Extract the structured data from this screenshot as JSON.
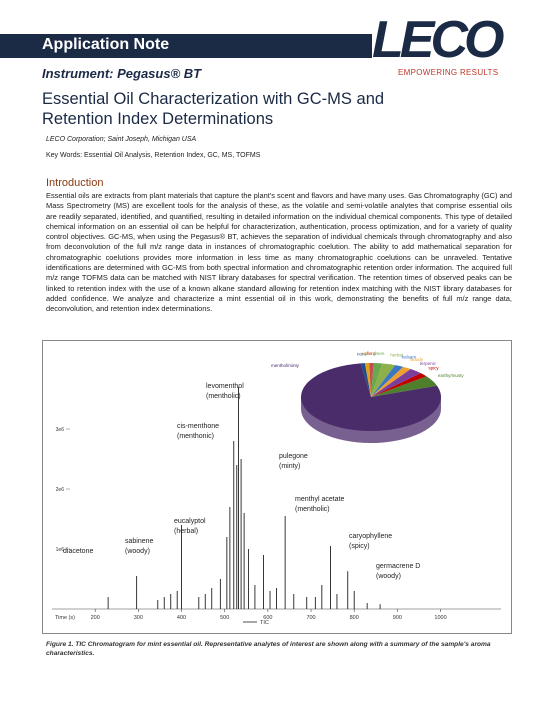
{
  "header": {
    "title": "Application Note",
    "logo": "LECO",
    "tagline": "EMPOWERING RESULTS"
  },
  "instrument": "Instrument: Pegasus® BT",
  "title": "Essential Oil Characterization with GC-MS and Retention Index Determinations",
  "affiliation": "LECO Corporation; Saint Joseph, Michigan USA",
  "keywords": "Key Words: Essential Oil Analysis, Retention Index, GC, MS, TOFMS",
  "introduction": {
    "heading": "Introduction",
    "text": "Essential oils are extracts from plant materials that capture the plant's scent and flavors and have many uses. Gas Chromatography (GC) and Mass Spectrometry (MS) are excellent tools for the analysis of these, as the volatile and semi-volatile analytes that comprise essential oils are readily separated, identified, and quantified, resulting in detailed information on the individual chemical components. This type of detailed chemical information on an essential oil can be helpful for characterization, authentication, process optimization, and for a variety of quality control objectives. GC-MS, when using the Pegasus® BT, achieves the separation of individual chemicals through chromatography and also from deconvolution of the full m/z range data in instances of chromatographic coelution. The ability to add mathematical separation for chromatographic coelutions provides more information in less time as many chromatographic coelutions can be unraveled. Tentative identifications are determined with GC-MS from both spectral information and chromatographic retention order information. The acquired full m/z range TOFMS data can be matched with NIST library databases for spectral verification. The retention times of observed peaks can be linked to retention index with the use of a known alkane standard allowing for retention index matching with the NIST library databases for added confidence. We analyze and characterize a mint essential oil in this work, demonstrating the benefits of full m/z range data, deconvolution, and retention index determinations."
  },
  "caption": "Figure 1. TIC Chromatogram for mint essential oil. Representative analytes of interest are shown along with a summary of the sample's aroma characteristics.",
  "chart_data": [
    {
      "type": "stem",
      "x_label": "Time (s)",
      "x": [
        230,
        296,
        345,
        360,
        375,
        390,
        400,
        440,
        455,
        470,
        490,
        505,
        512,
        521,
        528,
        532,
        538,
        545,
        555,
        570,
        590,
        605,
        620,
        640,
        660,
        690,
        710,
        725,
        745,
        760,
        785,
        800,
        830,
        860
      ],
      "series": [
        {
          "name": "TIC",
          "color": "#222222",
          "values": [
            200000,
            550000,
            150000,
            200000,
            250000,
            300000,
            1400000,
            200000,
            250000,
            350000,
            500000,
            1200000,
            1700000,
            2800000,
            2400000,
            3700000,
            2500000,
            1600000,
            1000000,
            400000,
            900000,
            300000,
            350000,
            1550000,
            250000,
            200000,
            200000,
            400000,
            1050000,
            250000,
            630000,
            300000,
            100000,
            80000
          ]
        }
      ],
      "xlim": [
        100,
        1140
      ],
      "xticks": [
        200,
        300,
        400,
        500,
        600,
        700,
        800,
        900,
        1000
      ],
      "ylim": [
        0,
        4400000
      ],
      "yticks": [
        {
          "value": 1000000,
          "label": "1e6"
        },
        {
          "value": 2000000,
          "label": "2e6"
        },
        {
          "value": 3000000,
          "label": "3e6"
        }
      ],
      "annotations": [
        {
          "text": "diacetone"
        },
        {
          "text": "sabinene",
          "aroma": "(woody)"
        },
        {
          "text": "eucalyptol",
          "aroma": "(herbal)"
        },
        {
          "text": "cis-menthone",
          "aroma": "(menthonic)"
        },
        {
          "text": "levomenthol",
          "aroma": "(mentholic)"
        },
        {
          "text": "pulegone",
          "aroma": "(minty)"
        },
        {
          "text": "menthyl acetate",
          "aroma": "(mentholic)"
        },
        {
          "text": "caryophyllene",
          "aroma": "(spicy)"
        },
        {
          "text": "germacrene D",
          "aroma": "(woody)"
        }
      ]
    },
    {
      "type": "pie",
      "categories": [
        "none",
        "citrus",
        "floral",
        "green",
        "herbal",
        "balsam",
        "woody",
        "terpenic",
        "spicy",
        "earthy/musty",
        "menthol/minty"
      ],
      "values": [
        1,
        1,
        1,
        2,
        3,
        2,
        2,
        3,
        2,
        5,
        78
      ],
      "colors": [
        "#1f4e8c",
        "#e0a020",
        "#c0504d",
        "#6aa84f",
        "#8db04a",
        "#3a78c3",
        "#f0a030",
        "#7a3e9d",
        "#c00000",
        "#4f7f2a",
        "#4b2c6b"
      ]
    }
  ]
}
